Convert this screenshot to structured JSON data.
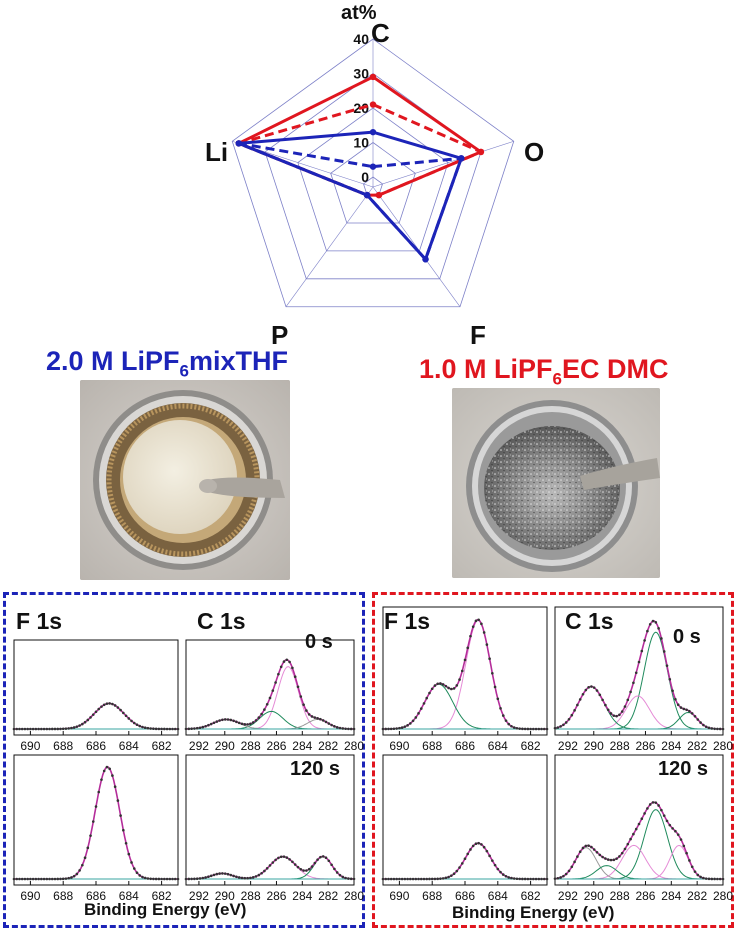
{
  "figure": {
    "radar_unit": "at%",
    "axes": [
      "C",
      "O",
      "F",
      "P",
      "Li"
    ],
    "radial_ticks": [
      "0",
      "10",
      "20",
      "30",
      "40"
    ],
    "left_heading_main": "2.0 M LiPF",
    "left_heading_sub": "6",
    "left_heading_tail": "mixTHF",
    "right_heading_main": "1.0 M LiPF",
    "right_heading_sub": "6",
    "right_heading_tail": "EC DMC",
    "xps": {
      "f1s_label": "F 1s",
      "c1s_label": "C 1s",
      "time_0": "0 s",
      "time_120": "120 s",
      "f1s_ticks": [
        "690",
        "688",
        "686",
        "684",
        "682"
      ],
      "c1s_ticks": [
        "292",
        "290",
        "288",
        "286",
        "284",
        "282",
        "280"
      ],
      "xlabel": "Binding Energy (eV)"
    },
    "colors": {
      "blue": "#1c24b8",
      "red": "#e0161f"
    }
  },
  "chart_data": {
    "type": "radar",
    "unit": "at%",
    "axes": [
      "C",
      "O",
      "F",
      "P",
      "Li"
    ],
    "range": [
      0,
      40
    ],
    "series": [
      {
        "color": "#e0161f",
        "style": "solid",
        "values": [
          29,
          30,
          0,
          0,
          38
        ]
      },
      {
        "color": "#e0161f",
        "style": "dashed",
        "values": [
          21,
          30,
          0,
          0,
          38
        ]
      },
      {
        "color": "#1c24b8",
        "style": "solid",
        "values": [
          13,
          24,
          23,
          0,
          38
        ]
      },
      {
        "color": "#1c24b8",
        "style": "dashed",
        "values": [
          3,
          24,
          23,
          0,
          38
        ]
      }
    ]
  }
}
